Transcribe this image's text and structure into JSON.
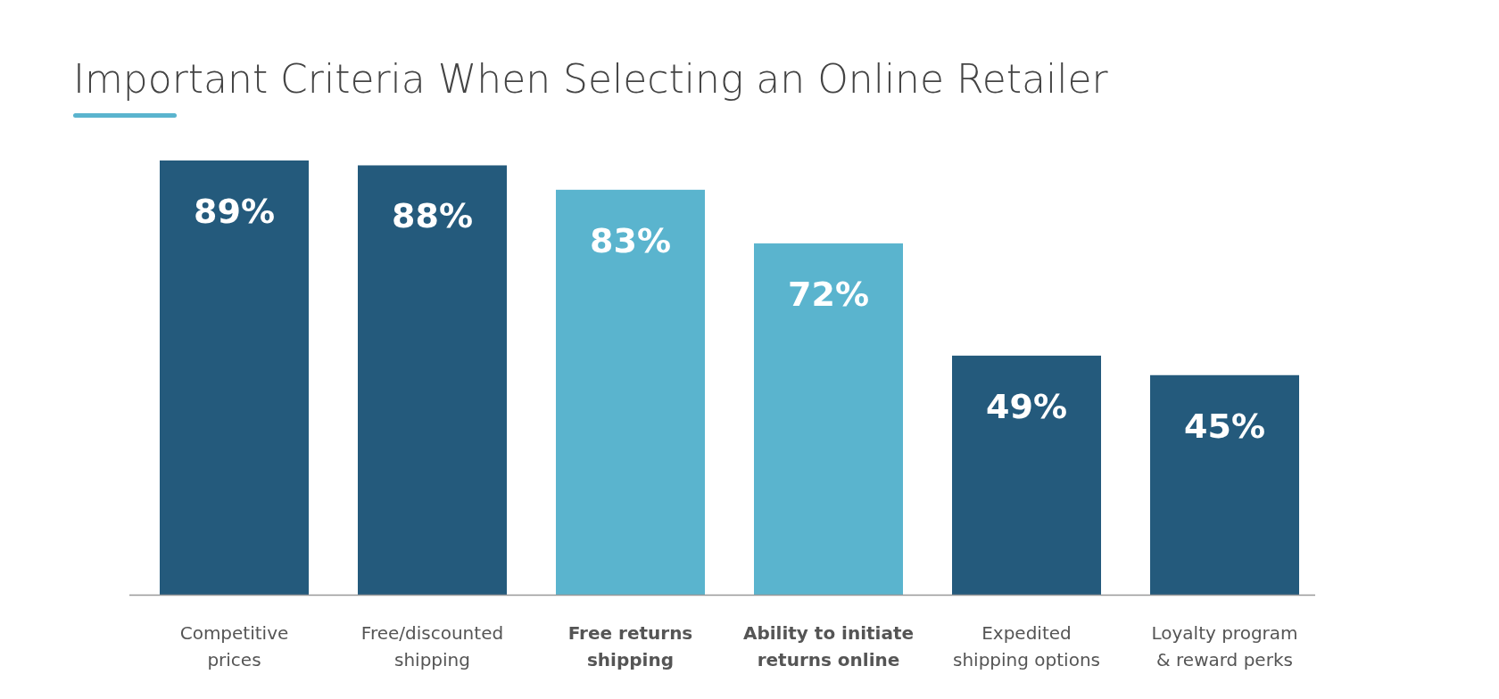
{
  "chart_data": {
    "type": "bar",
    "title": "Important Criteria When Selecting an Online Retailer",
    "categories": [
      "Competitive prices",
      "Free/discounted shipping",
      "Free returns shipping",
      "Ability to initiate returns online",
      "Expedited shipping options",
      "Loyalty program & reward perks"
    ],
    "values": [
      89,
      88,
      83,
      72,
      49,
      45
    ],
    "colors": [
      "#245a7c",
      "#245a7c",
      "#5ab4ce",
      "#5ab4ce",
      "#245a7c",
      "#245a7c"
    ],
    "value_labels": [
      "89%",
      "88%",
      "83%",
      "72%",
      "49%",
      "45%"
    ]
  }
}
